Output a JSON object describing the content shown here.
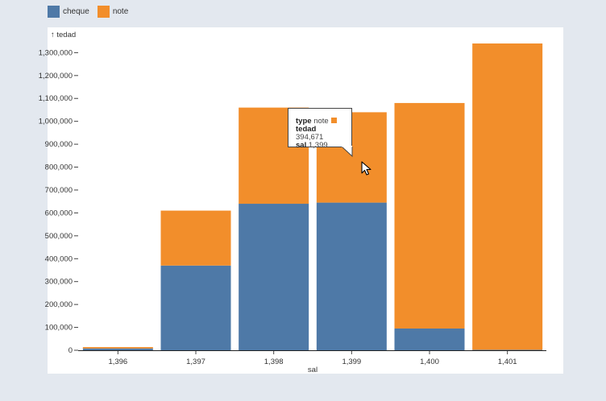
{
  "legend": {
    "items": [
      {
        "label": "cheque",
        "color": "#4e79a7"
      },
      {
        "label": "note",
        "color": "#f28e2b"
      }
    ]
  },
  "tooltip": {
    "type_key": "type",
    "type_value": "note",
    "y_key": "tedad",
    "y_value": "394,671",
    "x_key": "sal",
    "x_value": "1,399"
  },
  "chart_data": {
    "type": "bar",
    "stacked": true,
    "categories": [
      "1,396",
      "1,397",
      "1,398",
      "1,399",
      "1,400",
      "1,401"
    ],
    "series": [
      {
        "name": "cheque",
        "color": "#4e79a7",
        "values": [
          8000,
          370000,
          640000,
          645000,
          95000,
          2000
        ]
      },
      {
        "name": "note",
        "color": "#f28e2b",
        "values": [
          6000,
          240000,
          420000,
          394671,
          985000,
          1338000
        ]
      }
    ],
    "xlabel": "sal",
    "ylabel": "↑ tedad",
    "ylim": [
      0,
      1340000
    ],
    "yticks": [
      0,
      100000,
      200000,
      300000,
      400000,
      500000,
      600000,
      700000,
      800000,
      900000,
      1000000,
      1100000,
      1200000,
      1300000
    ],
    "ytick_labels": [
      "0",
      "100,000",
      "200,000",
      "300,000",
      "400,000",
      "500,000",
      "600,000",
      "700,000",
      "800,000",
      "900,000",
      "1,000,000",
      "1,100,000",
      "1,200,000",
      "1,300,000"
    ],
    "grid": false,
    "legend_position": "top-left"
  }
}
